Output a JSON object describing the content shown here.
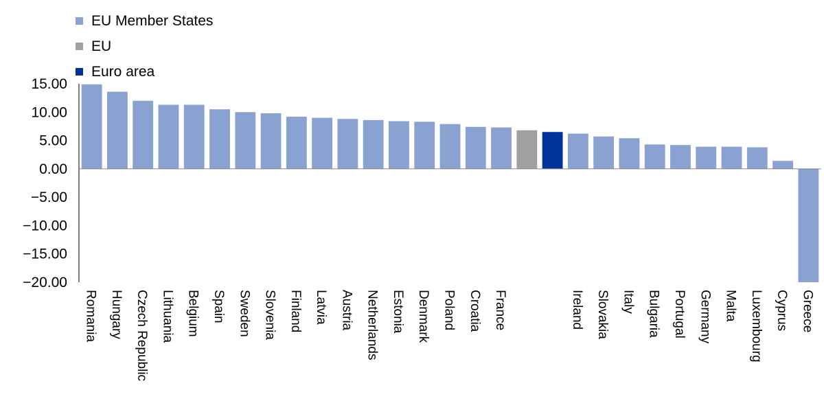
{
  "chart_data": {
    "type": "bar",
    "title": "",
    "xlabel": "",
    "ylabel": "",
    "ylim": [
      -20,
      15
    ],
    "yticks": [
      "15.00",
      "10.00",
      "5.00",
      "0.00",
      "-5.00",
      "-10.00",
      "-15.00",
      "-20.00"
    ],
    "ytick_values": [
      15,
      10,
      5,
      0,
      -5,
      -10,
      -15,
      -20
    ],
    "legend_position": "top-left",
    "grid": false,
    "series": [
      {
        "name": "EU Member States",
        "color": "#8aa2d1"
      },
      {
        "name": "EU",
        "color": "#a0a0a0"
      },
      {
        "name": "Euro area",
        "color": "#003399"
      }
    ],
    "categories": [
      "Romania",
      "Hungary",
      "Czech Republic",
      "Lithuania",
      "Belgium",
      "Spain",
      "Sweden",
      "Slovenia",
      "Finland",
      "Latvia",
      "Austria",
      "Netherlands",
      "Estonia",
      "Denmark",
      "Poland",
      "Croatia",
      "France",
      "",
      "",
      "Ireland",
      "Slovakia",
      "Italy",
      "Bulgaria",
      "Portugal",
      "Germany",
      "Malta",
      "Luxembourg",
      "Cyprus",
      "Greece"
    ],
    "values": [
      14.9,
      13.6,
      12.0,
      11.3,
      11.3,
      10.5,
      10.0,
      9.8,
      9.2,
      9.0,
      8.8,
      8.6,
      8.4,
      8.3,
      7.9,
      7.4,
      7.3,
      6.8,
      6.5,
      6.2,
      5.7,
      5.4,
      4.3,
      4.2,
      3.9,
      3.9,
      3.8,
      1.4,
      -20.0
    ],
    "bar_series": [
      0,
      0,
      0,
      0,
      0,
      0,
      0,
      0,
      0,
      0,
      0,
      0,
      0,
      0,
      0,
      0,
      0,
      1,
      2,
      0,
      0,
      0,
      0,
      0,
      0,
      0,
      0,
      0,
      0
    ]
  }
}
